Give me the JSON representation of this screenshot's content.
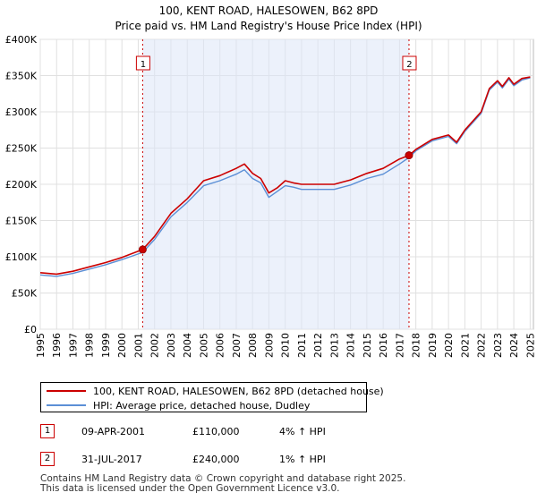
{
  "chart_data": {
    "type": "line",
    "title": "100, KENT ROAD, HALESOWEN, B62 8PD",
    "subtitle": "Price paid vs. HM Land Registry's House Price Index (HPI)",
    "xlim": [
      1995,
      2025.2
    ],
    "ylim": [
      0,
      400000
    ],
    "y_ticks": [
      0,
      50000,
      100000,
      150000,
      200000,
      250000,
      300000,
      350000,
      400000
    ],
    "y_tick_labels": [
      "£0",
      "£50K",
      "£100K",
      "£150K",
      "£200K",
      "£250K",
      "£300K",
      "£350K",
      "£400K"
    ],
    "x_ticks": [
      1995,
      1996,
      1997,
      1998,
      1999,
      2000,
      2001,
      2002,
      2003,
      2004,
      2005,
      2006,
      2007,
      2008,
      2009,
      2010,
      2011,
      2012,
      2013,
      2014,
      2015,
      2016,
      2017,
      2018,
      2019,
      2020,
      2021,
      2022,
      2023,
      2024,
      2025
    ],
    "shaded_period": [
      2001.27,
      2017.58
    ],
    "series": [
      {
        "name": "100, KENT ROAD, HALESOWEN, B62 8PD (detached house)",
        "color": "#cc0000",
        "x": [
          1995,
          1996,
          1997,
          1998,
          1999,
          2000,
          2001.27,
          2002,
          2003,
          2004,
          2005,
          2006,
          2007,
          2007.5,
          2008,
          2008.5,
          2009,
          2009.5,
          2010,
          2010.5,
          2011,
          2012,
          2013,
          2014,
          2015,
          2016,
          2017,
          2017.58,
          2018,
          2019,
          2020,
          2020.5,
          2021,
          2022,
          2022.5,
          2023,
          2023.3,
          2023.7,
          2024,
          2024.5,
          2025
        ],
        "values": [
          78000,
          76000,
          80000,
          86000,
          92000,
          99000,
          110000,
          128000,
          160000,
          180000,
          205000,
          212000,
          222000,
          228000,
          215000,
          208000,
          188000,
          195000,
          205000,
          202000,
          200000,
          200000,
          200000,
          206000,
          215000,
          222000,
          235000,
          240000,
          248000,
          262000,
          268000,
          258000,
          275000,
          300000,
          332000,
          343000,
          335000,
          347000,
          338000,
          346000,
          348000
        ]
      },
      {
        "name": "HPI: Average price, detached house, Dudley",
        "color": "#5b8fd6",
        "x": [
          1995,
          1996,
          1997,
          1998,
          1999,
          2000,
          2001.27,
          2002,
          2003,
          2004,
          2005,
          2006,
          2007,
          2007.5,
          2008,
          2008.5,
          2009,
          2009.5,
          2010,
          2010.5,
          2011,
          2012,
          2013,
          2014,
          2015,
          2016,
          2017,
          2017.58,
          2018,
          2019,
          2020,
          2020.5,
          2021,
          2022,
          2022.5,
          2023,
          2023.3,
          2023.7,
          2024,
          2024.5,
          2025
        ],
        "values": [
          75000,
          73000,
          77000,
          83000,
          89000,
          96000,
          106000,
          124000,
          155000,
          175000,
          198000,
          205000,
          214000,
          220000,
          208000,
          202000,
          182000,
          190000,
          198000,
          196000,
          193000,
          193000,
          193000,
          199000,
          208000,
          214000,
          228000,
          237000,
          246000,
          260000,
          266000,
          256000,
          273000,
          298000,
          330000,
          341000,
          333000,
          345000,
          336000,
          344000,
          347000
        ]
      }
    ],
    "markers": [
      {
        "label": "1",
        "x": 2001.27,
        "y": 110000
      },
      {
        "label": "2",
        "x": 2017.58,
        "y": 240000
      }
    ]
  },
  "legend": {
    "series1": "100, KENT ROAD, HALESOWEN, B62 8PD (detached house)",
    "series2": "HPI: Average price, detached house, Dudley"
  },
  "sales": [
    {
      "num": "1",
      "date": "09-APR-2001",
      "price": "£110,000",
      "hpi": "4% ↑ HPI"
    },
    {
      "num": "2",
      "date": "31-JUL-2017",
      "price": "£240,000",
      "hpi": "1% ↑ HPI"
    }
  ],
  "footer": {
    "line1": "Contains HM Land Registry data © Crown copyright and database right 2025.",
    "line2": "This data is licensed under the Open Government Licence v3.0."
  }
}
